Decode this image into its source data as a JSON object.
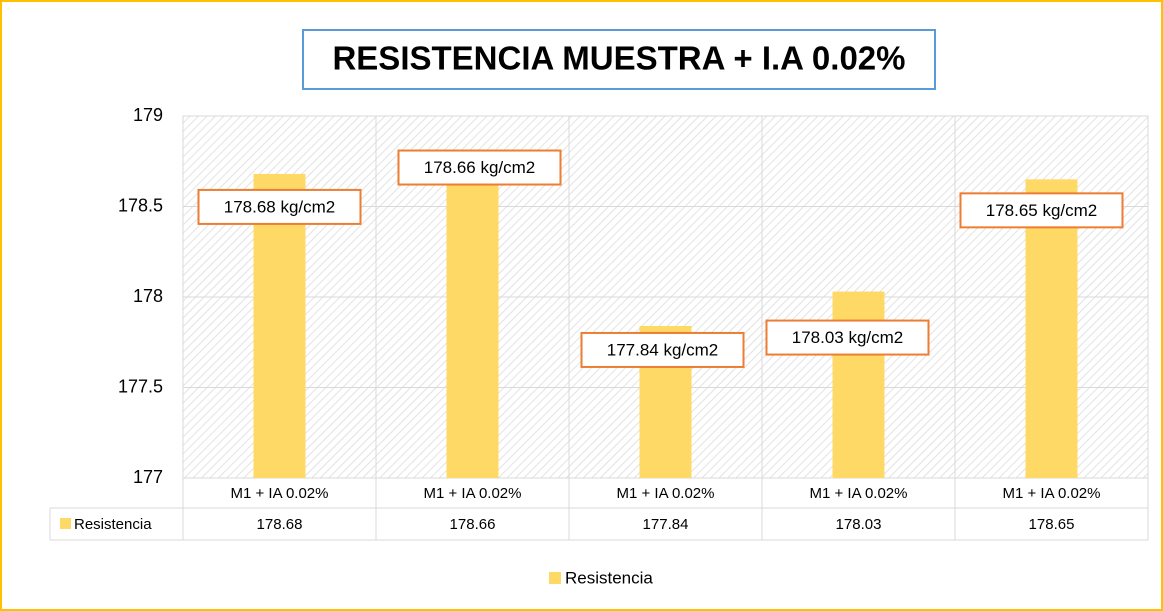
{
  "chart_data": {
    "type": "bar",
    "title": "RESISTENCIA MUESTRA + I.A 0.02%",
    "categories": [
      "M1 + IA 0.02%",
      "M1 + IA 0.02%",
      "M1 + IA 0.02%",
      "M1 + IA 0.02%",
      "M1 + IA 0.02%"
    ],
    "series": [
      {
        "name": "Resistencia",
        "color": "#ffd966",
        "values": [
          178.68,
          178.66,
          177.84,
          178.03,
          178.65
        ],
        "value_labels": [
          "178.68 kg/cm2",
          "178.66 kg/cm2",
          "177.84 kg/cm2",
          "178.03 kg/cm2",
          "178.65 kg/cm2"
        ]
      }
    ],
    "ylim": [
      177,
      179
    ],
    "yticks": [
      177,
      177.5,
      178,
      178.5,
      179
    ],
    "grid": true,
    "legend": "bottom",
    "data_table": true
  }
}
